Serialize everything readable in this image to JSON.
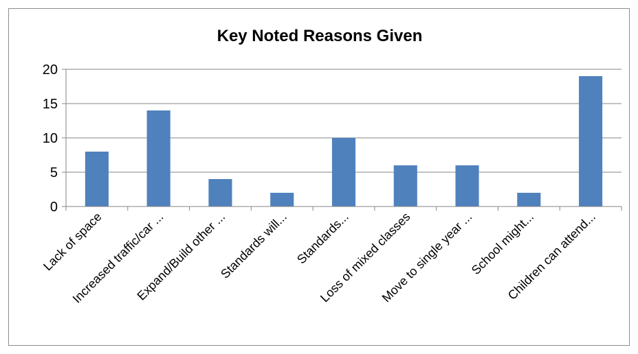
{
  "chart_data": {
    "type": "bar",
    "title": "Key Noted Reasons Given",
    "xlabel": "",
    "ylabel": "",
    "categories": [
      "Lack of space",
      "Increased traffic/car ...",
      "Expand/Build other ...",
      "Standards will...",
      "Standards...",
      "Loss of mixed classes",
      "Move to single year ...",
      "School might...",
      "Children can attend..."
    ],
    "values": [
      8,
      14,
      4,
      2,
      10,
      6,
      6,
      2,
      19
    ],
    "ylim": [
      0,
      20
    ],
    "yticks": [
      0,
      5,
      10,
      15,
      20
    ],
    "grid": true,
    "legend": "none",
    "bar_color": "#4f81bd",
    "grid_color": "#868686"
  }
}
